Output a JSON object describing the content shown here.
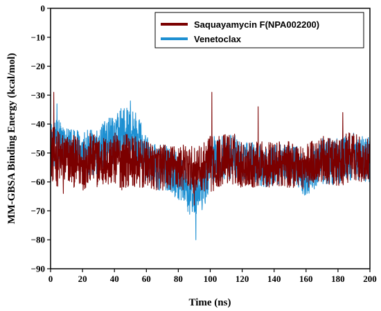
{
  "chart_data": {
    "type": "line",
    "title": "",
    "xlabel": "Time (ns)",
    "ylabel": "MM-GBSA Binding Energy (kcal/mol)",
    "xlim": [
      0,
      200
    ],
    "ylim": [
      -90,
      0
    ],
    "xticks": [
      "0",
      "20",
      "40",
      "60",
      "80",
      "100",
      "120",
      "140",
      "160",
      "180",
      "200"
    ],
    "yticks": [
      "0",
      "−10",
      "−20",
      "−30",
      "−40",
      "−50",
      "−60",
      "−70",
      "−80",
      "−90"
    ],
    "grid": false,
    "legend_position": "top-right",
    "series": [
      {
        "name": "Saquayamycin F(NPA002200)",
        "color": "#7b0000",
        "x": [
          0,
          5,
          10,
          15,
          20,
          25,
          30,
          35,
          40,
          45,
          50,
          55,
          60,
          65,
          70,
          75,
          80,
          85,
          90,
          95,
          100,
          105,
          110,
          115,
          120,
          125,
          130,
          135,
          140,
          145,
          150,
          155,
          160,
          165,
          170,
          175,
          180,
          185,
          190,
          195,
          200
        ],
        "mean": [
          -50,
          -52,
          -52,
          -53,
          -54,
          -52,
          -53,
          -53,
          -52,
          -53,
          -52,
          -54,
          -54,
          -55,
          -55,
          -55,
          -55,
          -55,
          -56,
          -55,
          -54,
          -53,
          -52,
          -52,
          -54,
          -54,
          -54,
          -54,
          -54,
          -54,
          -54,
          -54,
          -55,
          -53,
          -52,
          -53,
          -54,
          -52,
          -51,
          -53,
          -53
        ],
        "amp": [
          10,
          10,
          9,
          9,
          9,
          9,
          9,
          9,
          9,
          10,
          9,
          9,
          8,
          8,
          8,
          8,
          8,
          8,
          8,
          8,
          10,
          9,
          9,
          9,
          8,
          8,
          8,
          8,
          8,
          8,
          8,
          8,
          8,
          8,
          8,
          8,
          9,
          9,
          8,
          8,
          8
        ],
        "spikes": [
          {
            "x": 2,
            "y": -29
          },
          {
            "x": 101,
            "y": -29
          },
          {
            "x": 130,
            "y": -34
          },
          {
            "x": 183,
            "y": -36
          },
          {
            "x": 8,
            "y": -64
          },
          {
            "x": 90,
            "y": -68
          }
        ]
      },
      {
        "name": "Venetoclax",
        "color": "#1e90d2",
        "x": [
          0,
          5,
          10,
          15,
          20,
          25,
          30,
          35,
          40,
          45,
          50,
          55,
          60,
          65,
          70,
          75,
          80,
          85,
          90,
          95,
          100,
          105,
          110,
          115,
          120,
          125,
          130,
          135,
          140,
          145,
          150,
          155,
          160,
          165,
          170,
          175,
          180,
          185,
          190,
          195,
          200
        ],
        "mean": [
          -47,
          -47,
          -49,
          -50,
          -50,
          -50,
          -49,
          -47,
          -46,
          -43,
          -43,
          -46,
          -52,
          -55,
          -55,
          -56,
          -58,
          -63,
          -64,
          -63,
          -53,
          -52,
          -51,
          -51,
          -54,
          -53,
          -54,
          -55,
          -54,
          -54,
          -53,
          -55,
          -58,
          -55,
          -53,
          -53,
          -53,
          -52,
          -51,
          -52,
          -52
        ],
        "amp": [
          8,
          9,
          8,
          8,
          8,
          8,
          8,
          9,
          9,
          9,
          9,
          9,
          8,
          8,
          8,
          8,
          8,
          8,
          8,
          8,
          9,
          8,
          8,
          8,
          7,
          7,
          7,
          7,
          7,
          7,
          7,
          7,
          8,
          8,
          8,
          8,
          8,
          8,
          8,
          8,
          8
        ],
        "spikes": [
          {
            "x": 50,
            "y": -32
          },
          {
            "x": 91,
            "y": -80
          },
          {
            "x": 4,
            "y": -33
          }
        ]
      }
    ]
  }
}
